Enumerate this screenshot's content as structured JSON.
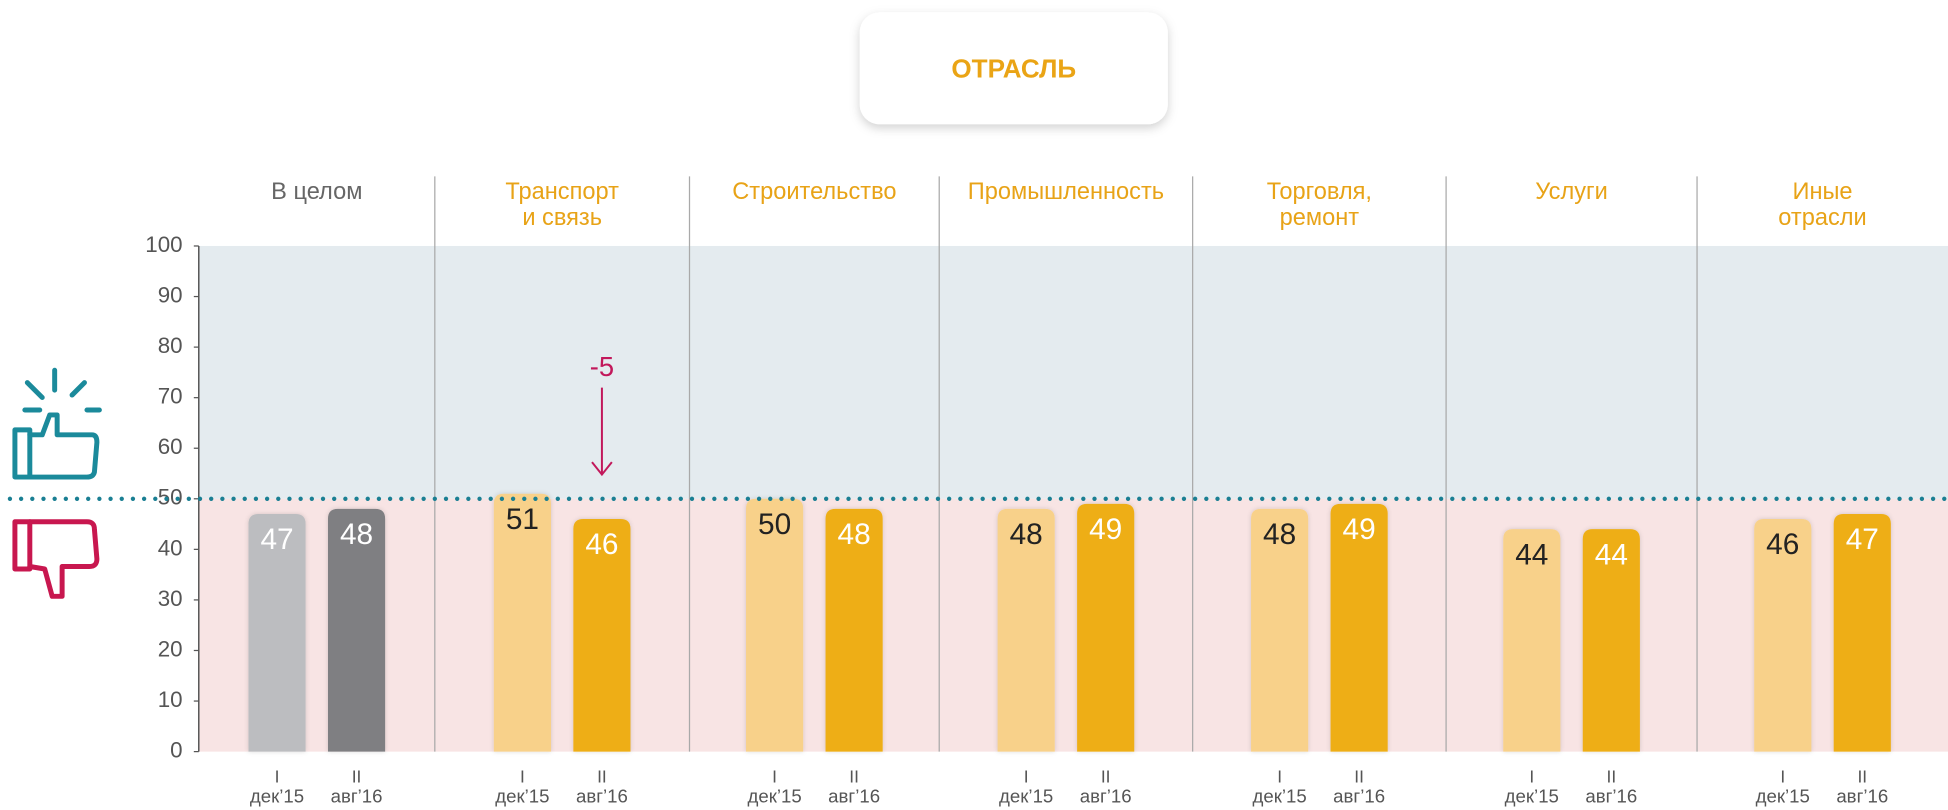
{
  "chart_data": {
    "type": "bar",
    "title": "ОТРАСЛЬ",
    "categories": [
      [
        "В целом"
      ],
      [
        "Транспорт",
        "и связь"
      ],
      [
        "Строительство"
      ],
      [
        "Промышленность"
      ],
      [
        "Торговля,",
        "ремонт"
      ],
      [
        "Услуги"
      ],
      [
        "Иные",
        "отрасли"
      ]
    ],
    "series": [
      {
        "name": "I",
        "period": "дек’15",
        "colors": [
          "#bcbdc0",
          "#f8d18a",
          "#f8d18a",
          "#f8d18a",
          "#f8d18a",
          "#f8d18a",
          "#f8d18a"
        ],
        "values": [
          47,
          51,
          50,
          48,
          48,
          44,
          46
        ]
      },
      {
        "name": "II",
        "period": "авг’16",
        "colors": [
          "#7f7f82",
          "#eeae17",
          "#eeae17",
          "#eeae17",
          "#eeae17",
          "#eeae17",
          "#eeae17"
        ],
        "values": [
          48,
          46,
          48,
          49,
          49,
          44,
          47
        ]
      }
    ],
    "ylim": [
      0,
      100
    ],
    "yticks": [
      0,
      10,
      20,
      30,
      40,
      50,
      60,
      70,
      80,
      90,
      100
    ],
    "threshold": 50,
    "annotation": "-5"
  }
}
